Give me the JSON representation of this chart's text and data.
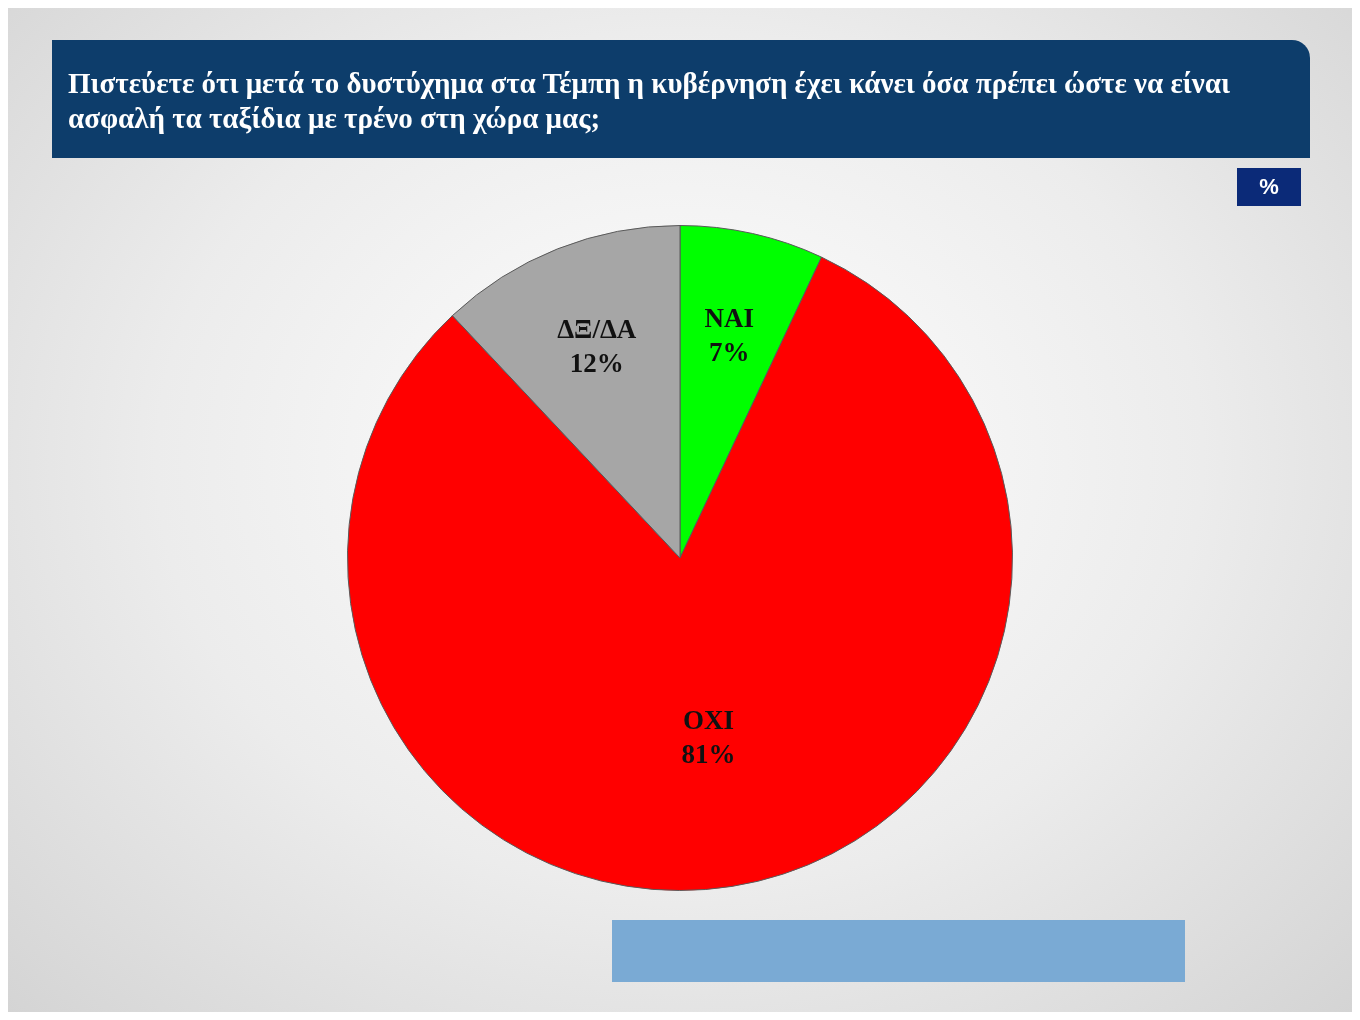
{
  "chart_data": {
    "type": "pie",
    "title": "Πιστεύετε ότι μετά το δυστύχημα στα Τέμπη η κυβέρνηση έχει κάνει όσα πρέπει ώστε να είναι ασφαλή τα ταξίδια με τρένο στη χώρα μας;",
    "annotations": [
      "%"
    ],
    "categories": [
      "ΝΑΙ",
      "ΟΧΙ",
      "ΔΞ/ΔΑ"
    ],
    "values": [
      7,
      81,
      12
    ],
    "colors": [
      "#00ff00",
      "#ff0000",
      "#a6a6a6"
    ],
    "value_labels": [
      "7%",
      "81%",
      "12%"
    ]
  }
}
